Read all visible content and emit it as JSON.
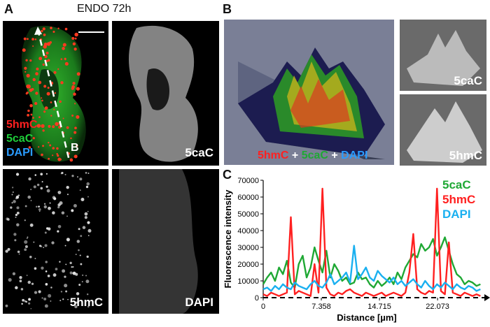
{
  "panel_a": {
    "letter": "A",
    "title": "ENDO 72h",
    "merge_labels": {
      "red": "5hmC",
      "green": "5caC",
      "blue": "DAPI",
      "line_marker": "B"
    },
    "tile_labels": {
      "top_right": "5caC",
      "bottom_left": "5hmC",
      "bottom_right": "DAPI"
    }
  },
  "panel_b": {
    "letter": "B",
    "composite_label": {
      "red": "5hmC",
      "plus1": " + ",
      "green": "5caC",
      "plus2": " + ",
      "blue": "DAPI"
    },
    "small_labels": {
      "top": "5caC",
      "bottom": "5hmC"
    }
  },
  "panel_c": {
    "letter": "C",
    "legend": {
      "green": "5caC",
      "red": "5hmC",
      "blue": "DAPI"
    }
  },
  "colors": {
    "red": "#ff2020",
    "green": "#1fa834",
    "blue": "#1ab0f0"
  },
  "chart_data": {
    "type": "line",
    "xlabel": "Distance [µm]",
    "ylabel": "Fluorescence intensity",
    "xlim": [
      0,
      28
    ],
    "ylim": [
      0,
      70000
    ],
    "xticks": [
      0,
      7.358,
      14.715,
      22.073
    ],
    "xtick_labels": [
      "0",
      "7.358",
      "14.715",
      "22.073"
    ],
    "yticks": [
      0,
      10000,
      20000,
      30000,
      40000,
      50000,
      60000,
      70000
    ],
    "ytick_labels": [
      "0",
      "10000",
      "20000",
      "30000",
      "40000",
      "50000",
      "60000",
      "70000"
    ],
    "series": [
      {
        "name": "5caC",
        "color": "#1fa834",
        "x": [
          0,
          0.5,
          1,
          1.5,
          2,
          2.5,
          3,
          3.5,
          4,
          4.5,
          5,
          5.5,
          6,
          6.5,
          7,
          7.5,
          8,
          8.5,
          9,
          9.5,
          10,
          10.5,
          11,
          11.5,
          12,
          12.5,
          13,
          13.5,
          14,
          14.5,
          15,
          15.5,
          16,
          16.5,
          17,
          17.5,
          18,
          18.5,
          19,
          19.5,
          20,
          20.5,
          21,
          21.5,
          22,
          22.5,
          23,
          23.5,
          24,
          24.5,
          25,
          25.5,
          26,
          26.5,
          27,
          27.5
        ],
        "values": [
          8000,
          12000,
          15000,
          10000,
          18000,
          14000,
          22000,
          9000,
          6000,
          20000,
          25000,
          12000,
          18000,
          30000,
          22000,
          15000,
          28000,
          12000,
          20000,
          16000,
          10000,
          12000,
          8000,
          9000,
          15000,
          11000,
          12000,
          8000,
          6000,
          10000,
          7000,
          9000,
          12000,
          8000,
          15000,
          11000,
          18000,
          22000,
          26000,
          24000,
          32000,
          28000,
          30000,
          35000,
          25000,
          30000,
          36000,
          28000,
          20000,
          14000,
          12000,
          8000,
          10000,
          9000,
          7000,
          8000
        ]
      },
      {
        "name": "5hmC",
        "color": "#ff2020",
        "x": [
          0,
          0.5,
          1,
          1.5,
          2,
          2.5,
          3,
          3.5,
          4,
          4.5,
          5,
          5.5,
          6,
          6.5,
          7,
          7.5,
          8,
          8.5,
          9,
          9.5,
          10,
          10.5,
          11,
          11.5,
          12,
          12.5,
          13,
          13.5,
          14,
          14.5,
          15,
          15.5,
          16,
          16.5,
          17,
          17.5,
          18,
          18.5,
          19,
          19.5,
          20,
          20.5,
          21,
          21.5,
          22,
          22.5,
          23,
          23.5,
          24,
          24.5,
          25,
          25.5,
          26,
          26.5,
          27,
          27.5
        ],
        "values": [
          2000,
          1000,
          3000,
          2000,
          1000,
          2000,
          3000,
          48000,
          2000,
          4000,
          3000,
          2000,
          1000,
          20000,
          3000,
          65000,
          6000,
          2000,
          1000,
          3000,
          2000,
          4000,
          5000,
          3000,
          2000,
          1000,
          3000,
          2000,
          1000,
          2000,
          3000,
          1000,
          2000,
          3000,
          2000,
          1000,
          3000,
          15000,
          38000,
          5000,
          3000,
          2000,
          4000,
          3000,
          65000,
          4000,
          2000,
          33000,
          3000,
          2000,
          1000,
          3000,
          2000,
          1000,
          2000,
          1000
        ]
      },
      {
        "name": "DAPI",
        "color": "#1ab0f0",
        "x": [
          0,
          0.5,
          1,
          1.5,
          2,
          2.5,
          3,
          3.5,
          4,
          4.5,
          5,
          5.5,
          6,
          6.5,
          7,
          7.5,
          8,
          8.5,
          9,
          9.5,
          10,
          10.5,
          11,
          11.5,
          12,
          12.5,
          13,
          13.5,
          14,
          14.5,
          15,
          15.5,
          16,
          16.5,
          17,
          17.5,
          18,
          18.5,
          19,
          19.5,
          20,
          20.5,
          21,
          21.5,
          22,
          22.5,
          23,
          23.5,
          24,
          24.5,
          25,
          25.5,
          26,
          26.5,
          27,
          27.5
        ],
        "values": [
          5000,
          6000,
          4000,
          7000,
          5000,
          8000,
          6000,
          5000,
          9000,
          7000,
          6000,
          5000,
          8000,
          10000,
          7000,
          6000,
          9000,
          14000,
          8000,
          10000,
          12000,
          15000,
          9000,
          31000,
          11000,
          14000,
          18000,
          12000,
          10000,
          16000,
          13000,
          11000,
          9000,
          12000,
          8000,
          10000,
          7000,
          9000,
          11000,
          8000,
          6000,
          10000,
          7000,
          5000,
          8000,
          6000,
          9000,
          7000,
          5000,
          8000,
          6000,
          5000,
          7000,
          6000,
          4000,
          5000
        ]
      }
    ]
  }
}
